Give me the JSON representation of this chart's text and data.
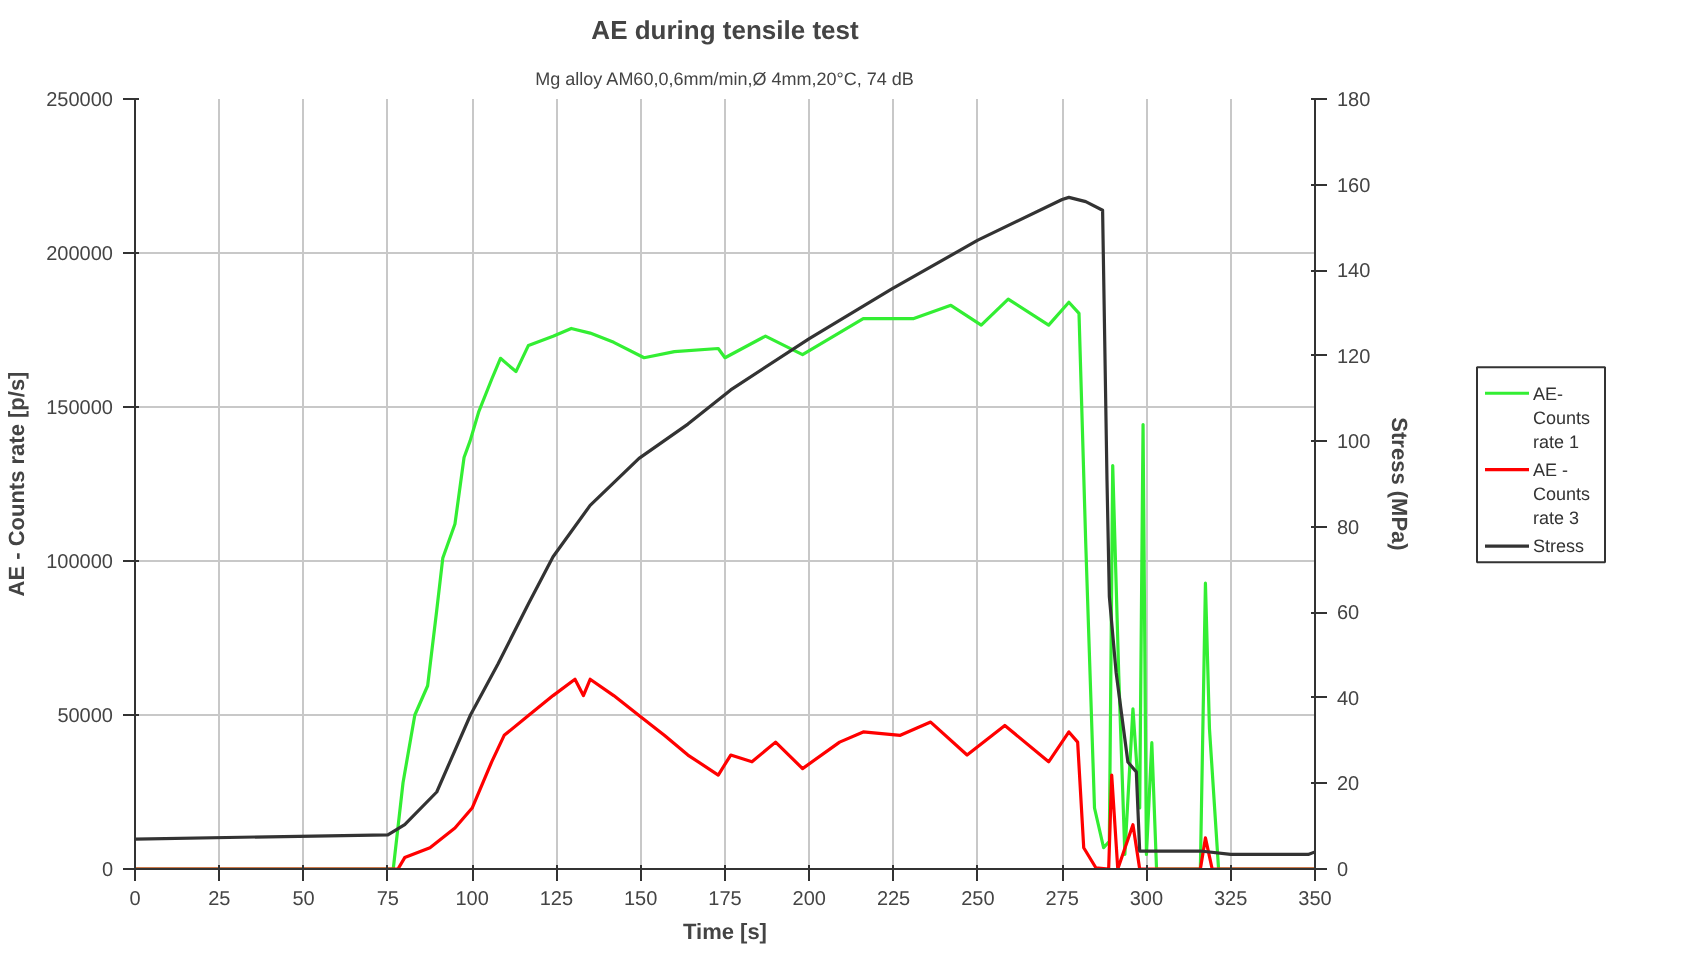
{
  "chart_data": {
    "type": "line",
    "title": "AE during tensile test",
    "subtitle": "Mg alloy AM60,0,6mm/min,Ø 4mm,20°C, 74 dB",
    "xlabel": "Time [s]",
    "ylabel": "AE - Counts rate [p/s]",
    "y2label": "Stress (MPa)",
    "xlim": [
      0,
      350
    ],
    "xticks": [
      0,
      25,
      50,
      75,
      100,
      125,
      150,
      175,
      200,
      225,
      250,
      275,
      300,
      325,
      350
    ],
    "ylim": [
      0,
      250000
    ],
    "yticks": [
      0,
      50000,
      100000,
      150000,
      200000,
      250000
    ],
    "y2lim": [
      0,
      180
    ],
    "y2ticks": [
      0,
      20,
      40,
      60,
      80,
      100,
      120,
      140,
      160,
      180
    ],
    "grid": true,
    "legend": "right",
    "marker": "none",
    "line_style": "solid",
    "series": [
      {
        "name": "AE- Counts rate 1",
        "color": "#33ee33",
        "x": [
          0,
          76.6,
          79.5,
          83,
          86.8,
          89.5,
          91.3,
          94.9,
          97.6,
          99.4,
          102,
          105.8,
          108.4,
          113,
          116.7,
          124,
          129.4,
          135,
          142,
          151,
          160,
          173,
          175,
          187,
          198,
          216,
          231,
          242,
          251,
          259,
          271,
          277,
          280,
          282,
          284.6,
          287.3,
          289,
          290,
          291.8,
          293.6,
          296,
          298,
          299,
          300,
          301.6,
          303,
          316,
          317.5,
          318.7,
          321.4,
          350
        ],
        "values": [
          0,
          0,
          28000,
          50000,
          59500,
          84000,
          101000,
          112000,
          133600,
          139000,
          148600,
          159000,
          165800,
          161500,
          170000,
          173000,
          175500,
          174000,
          171000,
          166000,
          168000,
          169000,
          166000,
          173000,
          167000,
          178700,
          178700,
          183000,
          176600,
          185000,
          176600,
          184000,
          180400,
          105700,
          19800,
          6900,
          9000,
          131000,
          62700,
          4700,
          52000,
          19800,
          144300,
          4700,
          41000,
          0,
          0,
          92800,
          45500,
          0,
          0
        ]
      },
      {
        "name": "AE - Counts rate 3",
        "color": "#ff0000",
        "x": [
          0,
          78,
          80,
          87.5,
          94.9,
          100,
          105.8,
          109.5,
          116.7,
          124,
          130.5,
          133,
          135,
          142,
          149.5,
          157,
          164,
          173,
          176.7,
          183,
          190,
          198,
          209,
          216,
          227,
          236,
          246.8,
          258,
          271,
          277,
          279.6,
          281.4,
          285,
          288.8,
          289.7,
          291.5,
          296,
          298,
          316,
          317.5,
          319.5,
          350
        ],
        "values": [
          0,
          0,
          3700,
          6900,
          13300,
          19800,
          34800,
          43400,
          49800,
          56300,
          61600,
          56300,
          61600,
          56300,
          49800,
          43400,
          37000,
          30500,
          37000,
          34800,
          41200,
          32600,
          41200,
          44500,
          43400,
          47700,
          37000,
          46600,
          34800,
          44500,
          41200,
          6900,
          400,
          0,
          30500,
          0,
          14400,
          0,
          0,
          10100,
          0,
          0
        ]
      },
      {
        "name": "Stress",
        "color": "#333333",
        "axis": "y2",
        "x": [
          0,
          75,
          80,
          89.5,
          99.5,
          107.7,
          116.7,
          124,
          135,
          149.5,
          164,
          176.7,
          200,
          224.5,
          250,
          275,
          277,
          282,
          287,
          288.3,
          289,
          291,
          294.5,
          297,
          298,
          316,
          325,
          348,
          350
        ],
        "values": [
          7,
          8,
          10.4,
          18,
          36,
          48,
          62,
          73,
          85,
          96,
          104,
          112,
          124,
          135.6,
          147,
          156.5,
          157,
          156,
          154,
          91,
          63.7,
          46,
          25,
          22.7,
          4.2,
          4.2,
          3.4,
          3.4,
          4
        ]
      }
    ]
  }
}
